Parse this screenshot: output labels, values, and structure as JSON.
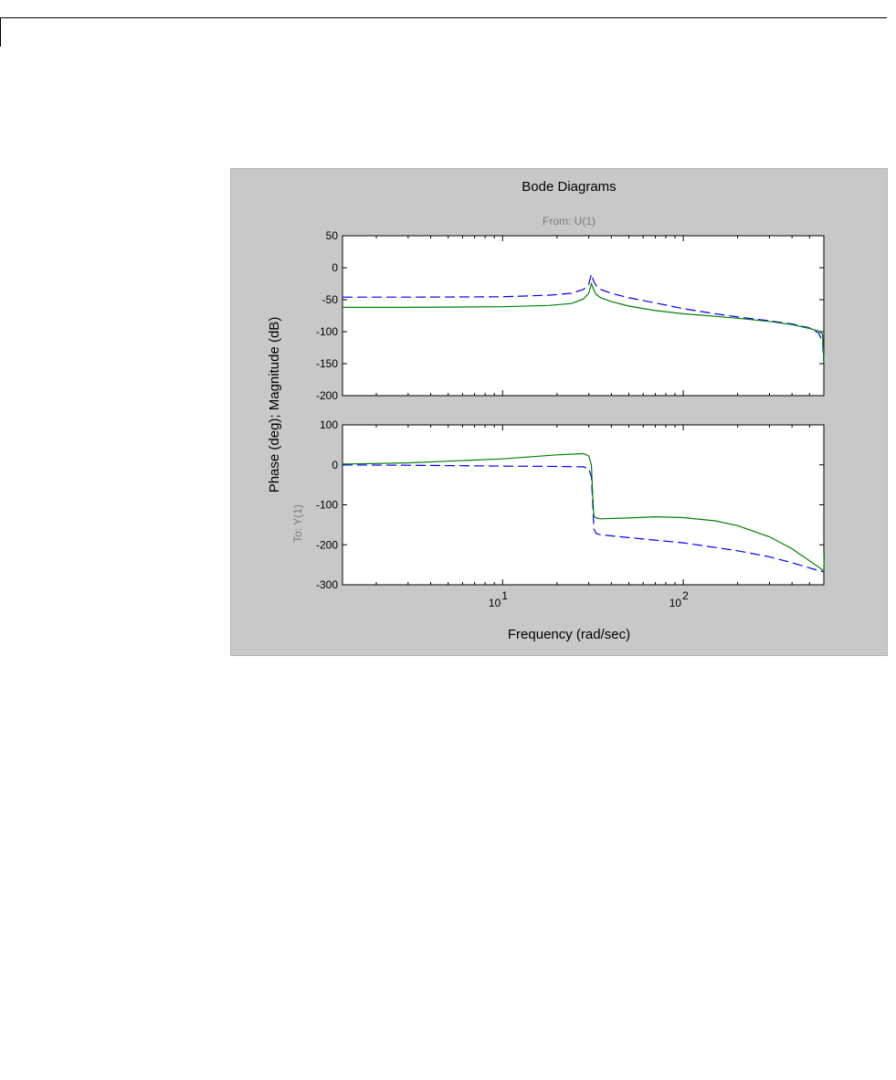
{
  "chart_data": {
    "type": "line",
    "title": "Bode Diagrams",
    "from_label": "From: U(1)",
    "to_label": "To: Y(1)",
    "ylabel": "Phase (deg); Magnitude (dB)",
    "xlabel": "Frequency (rad/sec)",
    "x_scale": "log",
    "xlim": [
      1.3,
      600
    ],
    "x_ticks": [
      10,
      100
    ],
    "x_tick_labels": [
      {
        "base": "10",
        "exp": "1"
      },
      {
        "base": "10",
        "exp": "2"
      }
    ],
    "grid": false,
    "colors": {
      "dashed": "#0000ff",
      "solid": "#008000"
    },
    "panels": [
      {
        "name": "magnitude",
        "ylim": [
          -200,
          50
        ],
        "y_ticks": [
          50,
          0,
          -50,
          -100,
          -150,
          -200
        ],
        "y_tick_labels": [
          "50",
          "0",
          "-50",
          "-100",
          "-150",
          "-200"
        ],
        "series": [
          {
            "style": "dashed",
            "x": [
              1.3,
              3,
              10,
              18,
              24,
              28,
              30,
              31,
              32,
              33,
              35,
              40,
              50,
              70,
              100,
              150,
              200,
              300,
              400,
              500,
              560,
              590,
              600
            ],
            "y": [
              -46,
              -46,
              -45.5,
              -43,
              -40,
              -34,
              -26,
              -10,
              -22,
              -28,
              -34,
              -40,
              -47,
              -55,
              -64,
              -72,
              -77,
              -83,
              -88,
              -94,
              -102,
              -115,
              -150
            ]
          },
          {
            "style": "solid",
            "x": [
              1.3,
              3,
              10,
              18,
              24,
              28,
              30,
              31,
              32,
              33,
              35,
              40,
              50,
              70,
              100,
              150,
              200,
              300,
              400,
              500,
              560,
              590,
              600
            ],
            "y": [
              -62,
              -62,
              -61,
              -59,
              -56,
              -49,
              -40,
              -25,
              -35,
              -42,
              -47,
              -53,
              -60,
              -67,
              -72,
              -76,
              -79,
              -84,
              -89,
              -95,
              -99,
              -104,
              -148
            ]
          }
        ]
      },
      {
        "name": "phase",
        "ylim": [
          -300,
          100
        ],
        "y_ticks": [
          100,
          0,
          -100,
          -200,
          -300
        ],
        "y_tick_labels": [
          "100",
          "0",
          "-100",
          "-200",
          "-300"
        ],
        "series": [
          {
            "style": "dashed",
            "x": [
              1.3,
              3,
              10,
              20,
              28,
              30,
              31,
              31.5,
              32,
              33,
              35,
              50,
              100,
              200,
              300,
              400,
              500,
              600,
              601,
              602
            ],
            "y": [
              0,
              -1,
              -3,
              -4,
              -5,
              -10,
              -30,
              -90,
              -160,
              -172,
              -175,
              -182,
              -195,
              -215,
              -230,
              -245,
              -258,
              -268,
              -240,
              -220
            ]
          },
          {
            "style": "solid",
            "x": [
              1.3,
              3,
              10,
              20,
              28,
              30,
              31,
              31.5,
              32,
              33,
              35,
              50,
              70,
              100,
              150,
              200,
              300,
              400,
              500,
              600,
              601,
              602
            ],
            "y": [
              2,
              5,
              15,
              25,
              28,
              22,
              0,
              -70,
              -128,
              -133,
              -135,
              -133,
              -130,
              -132,
              -140,
              -152,
              -180,
              -210,
              -240,
              -265,
              -245,
              -220
            ]
          }
        ]
      }
    ]
  }
}
